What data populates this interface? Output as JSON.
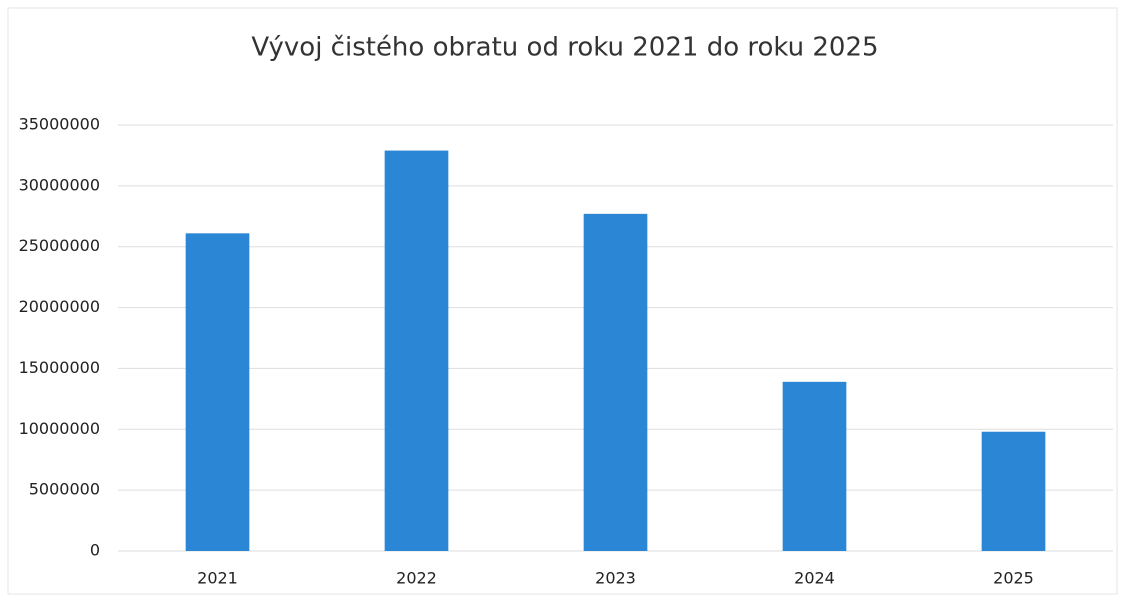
{
  "chart_data": {
    "type": "bar",
    "title": "Vývoj čistého obratu od roku 2021 do roku 2025",
    "categories": [
      "2021",
      "2022",
      "2023",
      "2024",
      "2025"
    ],
    "values": [
      26100000,
      32900000,
      27700000,
      13900000,
      9800000
    ],
    "color": "#2b87d6",
    "ylim": [
      0,
      35000000
    ],
    "yticks": [
      0,
      5000000,
      10000000,
      15000000,
      20000000,
      25000000,
      30000000,
      35000000
    ],
    "grid": true
  }
}
